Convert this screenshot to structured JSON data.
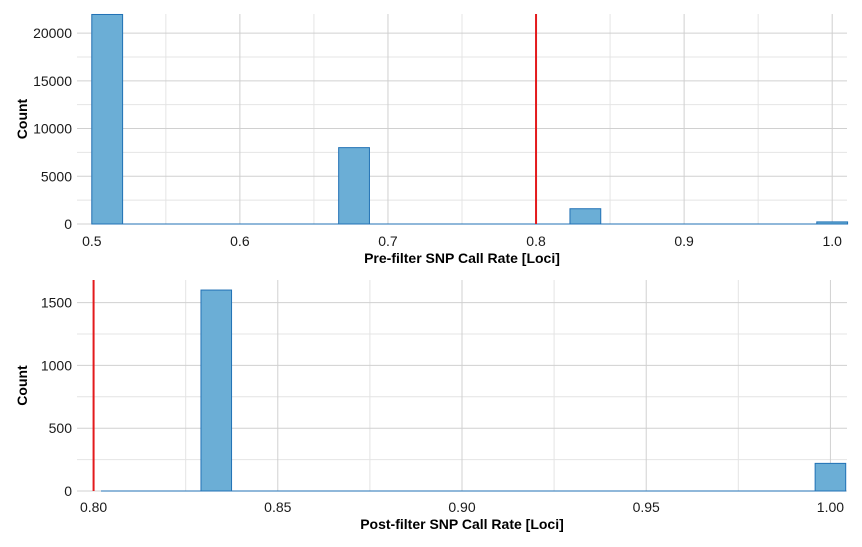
{
  "colors": {
    "bar_fill": "#6baed6",
    "bar_stroke": "#2171b5",
    "threshold": "#e31a1c",
    "grid_major": "#d0d0d0",
    "grid_minor": "#e4e4e4"
  },
  "chart_data": [
    {
      "type": "bar",
      "xlabel": "Pre-filter SNP Call Rate [Loci]",
      "ylabel": "Count",
      "xlim": [
        0.49,
        1.01
      ],
      "ylim": [
        0,
        22000
      ],
      "xticks": [
        0.5,
        0.6,
        0.7,
        0.8,
        0.9,
        1.0
      ],
      "xtick_labels": [
        "0.5",
        "0.6",
        "0.7",
        "0.8",
        "0.9",
        "1.0"
      ],
      "yticks": [
        0,
        5000,
        10000,
        15000,
        20000
      ],
      "ytick_labels": [
        "0",
        "5000",
        "10000",
        "15000",
        "20000"
      ],
      "bin_width": 0.0208,
      "bins": [
        {
          "x": 0.5104,
          "count": 21950
        },
        {
          "x": 0.6771,
          "count": 8000
        },
        {
          "x": 0.8333,
          "count": 1600
        },
        {
          "x": 1.0,
          "count": 220
        }
      ],
      "threshold": 0.8,
      "grid": true
    },
    {
      "type": "bar",
      "xlabel": "Post-filter SNP Call Rate [Loci]",
      "ylabel": "Count",
      "xlim": [
        0.7955,
        1.0045
      ],
      "ylim": [
        0,
        1680
      ],
      "xticks": [
        0.8,
        0.85,
        0.9,
        0.95,
        1.0
      ],
      "xtick_labels": [
        "0.80",
        "0.85",
        "0.90",
        "0.95",
        "1.00"
      ],
      "yticks": [
        0,
        500,
        1000,
        1500
      ],
      "ytick_labels": [
        "0",
        "500",
        "1000",
        "1500"
      ],
      "bin_width": 0.0083,
      "bins": [
        {
          "x": 0.8333,
          "count": 1600
        },
        {
          "x": 1.0,
          "count": 220
        }
      ],
      "threshold": 0.8,
      "grid": true
    }
  ]
}
